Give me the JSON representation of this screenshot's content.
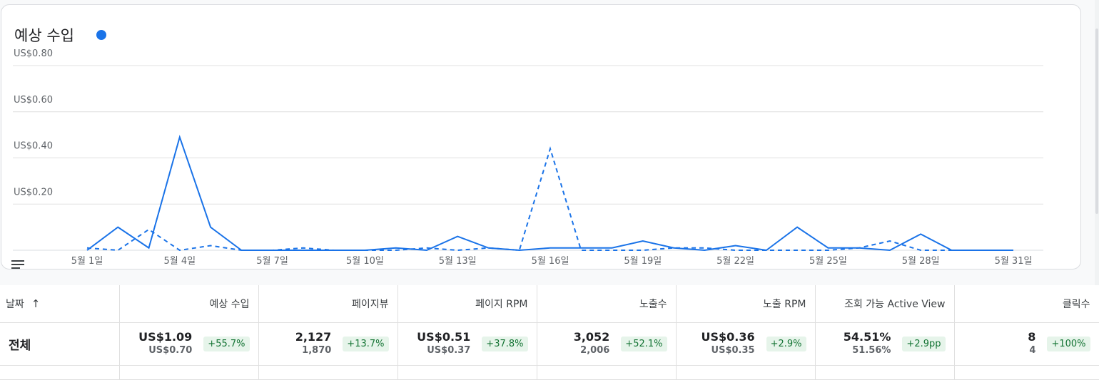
{
  "title": "예상 수입",
  "accent_color": "#1a73e8",
  "chart_data": {
    "type": "line",
    "title": "예상 수입",
    "y_tick_labels": [
      "US$0.20",
      "US$0.40",
      "US$0.60",
      "US$0.80"
    ],
    "y_ticks": [
      0.2,
      0.4,
      0.6,
      0.8
    ],
    "ylim": [
      0,
      0.8
    ],
    "x_tick_labels": [
      "5월 1일",
      "5월 4일",
      "5월 7일",
      "5월 10일",
      "5월 13일",
      "5월 16일",
      "5월 19일",
      "5월 22일",
      "5월 25일",
      "5월 28일",
      "5월 31일"
    ],
    "x_ticks": [
      1,
      4,
      7,
      10,
      13,
      16,
      19,
      22,
      25,
      28,
      31
    ],
    "x": [
      1,
      2,
      3,
      4,
      5,
      6,
      7,
      8,
      9,
      10,
      11,
      12,
      13,
      14,
      15,
      16,
      17,
      18,
      19,
      20,
      21,
      22,
      23,
      24,
      25,
      26,
      27,
      28,
      29,
      30,
      31
    ],
    "grid": true,
    "series": [
      {
        "style": "solid",
        "values": [
          0.0,
          0.1,
          0.01,
          0.49,
          0.1,
          0.0,
          0.0,
          0.0,
          0.0,
          0.0,
          0.01,
          0.0,
          0.06,
          0.01,
          0.0,
          0.01,
          0.01,
          0.01,
          0.04,
          0.01,
          0.0,
          0.02,
          0.0,
          0.1,
          0.01,
          0.01,
          0.0,
          0.07,
          0.0,
          0.0,
          0.0
        ]
      },
      {
        "style": "dashed",
        "values": [
          0.01,
          0.0,
          0.09,
          0.0,
          0.02,
          0.0,
          0.0,
          0.01,
          0.0,
          0.0,
          0.0,
          0.01,
          0.0,
          0.01,
          0.0,
          0.44,
          0.0,
          0.0,
          0.0,
          0.01,
          0.01,
          0.0,
          0.0,
          0.0,
          0.0,
          0.01,
          0.04,
          0.0,
          0.0,
          0.0,
          0.0
        ]
      }
    ]
  },
  "table": {
    "headers": {
      "date": "날짜",
      "sort_icon": "arrow-up-icon",
      "cols": [
        "예상 수입",
        "페이지뷰",
        "페이지 RPM",
        "노출수",
        "노출 RPM",
        "조회 가능 Active View",
        "클릭수"
      ]
    },
    "total": {
      "label": "전체",
      "cells": [
        {
          "value": "US$1.09",
          "compare": "US$0.70",
          "change": "+55.7%"
        },
        {
          "value": "2,127",
          "compare": "1,870",
          "change": "+13.7%"
        },
        {
          "value": "US$0.51",
          "compare": "US$0.37",
          "change": "+37.8%"
        },
        {
          "value": "3,052",
          "compare": "2,006",
          "change": "+52.1%"
        },
        {
          "value": "US$0.36",
          "compare": "US$0.35",
          "change": "+2.9%"
        },
        {
          "value": "54.51%",
          "compare": "51.56%",
          "change": "+2.9pp"
        },
        {
          "value": "8",
          "compare": "4",
          "change": "+100%"
        }
      ]
    }
  },
  "icons": {
    "menu": "menu-icon",
    "legend_dot": "legend-dot-icon"
  }
}
